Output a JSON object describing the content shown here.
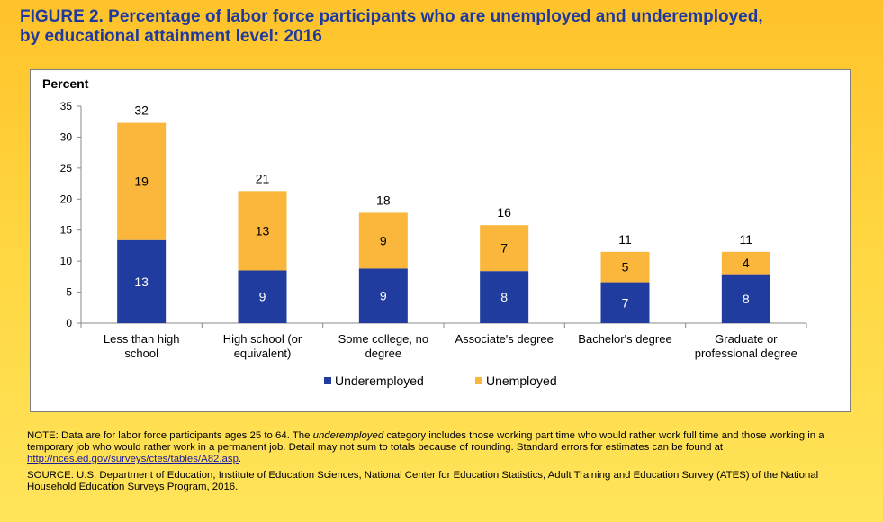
{
  "figure": {
    "title_line1": "FIGURE 2. Percentage of labor force participants who are unemployed and underemployed,",
    "title_line2": "by educational attainment level: 2016"
  },
  "chart_data": {
    "type": "bar",
    "stacked": true,
    "ylabel": "Percent",
    "ylim": [
      0,
      35
    ],
    "yticks": [
      0,
      5,
      10,
      15,
      20,
      25,
      30,
      35
    ],
    "categories": [
      [
        "Less than high",
        "school"
      ],
      [
        "High school (or",
        "equivalent)"
      ],
      [
        "Some college, no",
        "degree"
      ],
      [
        "Associate's degree"
      ],
      [
        "Bachelor's degree"
      ],
      [
        "Graduate or",
        "professional degree"
      ]
    ],
    "series": [
      {
        "name": "Underemployed",
        "color": "#1F3C9E",
        "values": [
          13.4,
          8.5,
          8.8,
          8.4,
          6.6,
          7.9
        ],
        "labels": [
          "13",
          "9",
          "9",
          "8",
          "7",
          "8"
        ]
      },
      {
        "name": "Unemployed",
        "color": "#FBB73B",
        "values": [
          18.9,
          12.8,
          9.0,
          7.4,
          4.9,
          3.6
        ],
        "labels": [
          "19",
          "13",
          "9",
          "7",
          "5",
          "4"
        ]
      }
    ],
    "totals": [
      "32",
      "21",
      "18",
      "16",
      "11",
      "11"
    ],
    "grid": false,
    "legend": "bottom"
  },
  "notes": {
    "note_prefix": "NOTE: Data are for labor force participants ages 25 to 64. The ",
    "note_italic": "underemployed",
    "note_rest": " category includes those working part time who would rather work full time and those working in a temporary job who would rather work in a permanent job. Detail may not sum to totals because of rounding. Standard errors for estimates can be found at ",
    "note_link": "http://nces.ed.gov/surveys/ctes/tables/A82.asp",
    "note_end": ".",
    "source": "SOURCE: U.S. Department of Education, Institute of Education Sciences, National Center for Education Statistics, Adult Training and Education Survey (ATES) of the National Household Education Surveys Program, 2016."
  }
}
